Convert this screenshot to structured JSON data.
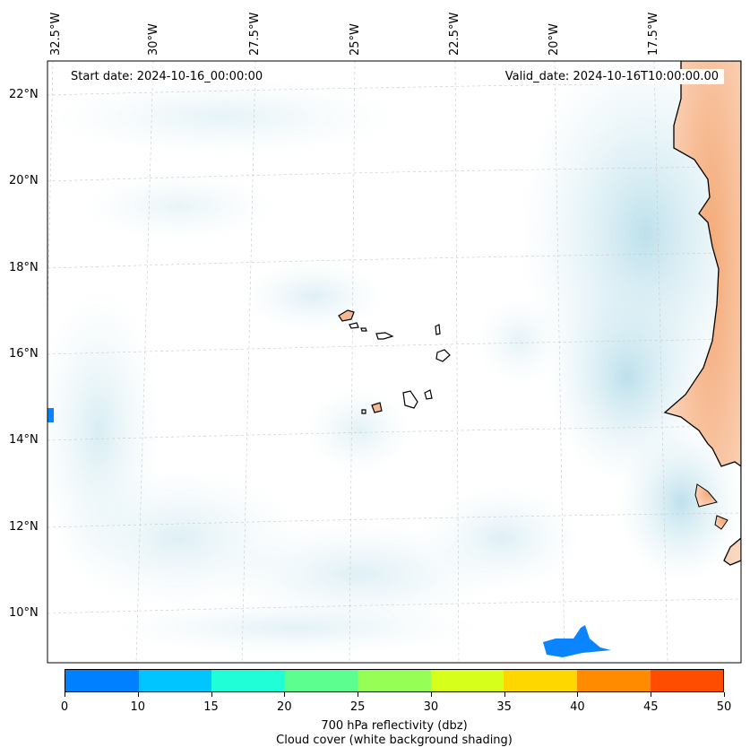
{
  "header": {
    "start_date": "Start date: 2024-10-16_00:00:00",
    "valid_date": "Valid_date: 2024-10-16T10:00:00.00"
  },
  "map": {
    "longitude_labels": [
      "32.5°W",
      "30°W",
      "27.5°W",
      "25°W",
      "22.5°W",
      "20°W",
      "17.5°W"
    ],
    "latitude_labels": [
      "22°N",
      "20°N",
      "18°N",
      "16°N",
      "14°N",
      "12°N",
      "10°N"
    ],
    "land_color": "#f9c4a0",
    "coastline_color": "#000000",
    "cloud_color": "#bfe3ee"
  },
  "colorbar": {
    "colors": [
      "#0080ff",
      "#00c5ff",
      "#1effd7",
      "#5cff8f",
      "#96ff55",
      "#d6ff1b",
      "#ffd700",
      "#ff8c00",
      "#ff4d00"
    ],
    "tick_labels": [
      "0",
      "10",
      "15",
      "20",
      "25",
      "30",
      "35",
      "40",
      "45",
      "50"
    ],
    "label": "700 hPa reflectivity (dbz)",
    "sublabel": "Cloud cover (white background shading)"
  }
}
